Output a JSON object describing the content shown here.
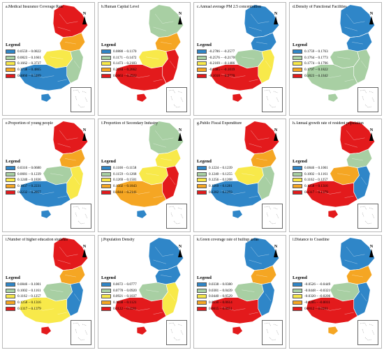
{
  "figure": {
    "legend_title": "Legend",
    "north_label": "N",
    "panels": [
      {
        "title": "a.Medical Insurance Coverage Rate",
        "colors": {
          "north": "#e31a1c",
          "northeast": "#f5a623",
          "central": "#f8e94a",
          "east": "#a8cfa3",
          "south": "#2f86c8",
          "island": "#2f86c8"
        },
        "legend": [
          {
            "color": "#2f86c8",
            "label": "0.0559 – 0.0822"
          },
          {
            "color": "#a8cfa3",
            "label": "0.0823 – 0.1661"
          },
          {
            "color": "#f8e94a",
            "label": "0.1662 – 0.3737"
          },
          {
            "color": "#f5a623",
            "label": "0.3738 – 0.4865"
          },
          {
            "color": "#e31a1c",
            "label": "0.4866 – 0.5469"
          }
        ]
      },
      {
        "title": "b.Human Capital Level",
        "colors": {
          "north": "#a8cfa3",
          "northeast": "#f5a623",
          "central": "#f8e94a",
          "east": "#e31a1c",
          "south": "#e31a1c",
          "island": "#e31a1c"
        },
        "legend": [
          {
            "color": "#2f86c8",
            "label": "0.0880 – 0.1170"
          },
          {
            "color": "#a8cfa3",
            "label": "0.1171 – 0.1472"
          },
          {
            "color": "#f8e94a",
            "label": "0.1473 – 0.2183"
          },
          {
            "color": "#f5a623",
            "label": "0.2184 – 0.2662"
          },
          {
            "color": "#e31a1c",
            "label": "0.2663 – 0.2922"
          }
        ]
      },
      {
        "title": "c.Annual average PM 2.5 concentration",
        "colors": {
          "north": "#2f86c8",
          "northeast": "#2f86c8",
          "central": "#a8cfa3",
          "east": "#f8e94a",
          "south": "#e31a1c",
          "island": "#e31a1c"
        },
        "legend": [
          {
            "color": "#2f86c8",
            "label": "-0.2786 – -0.2577"
          },
          {
            "color": "#a8cfa3",
            "label": "-0.2576 – -0.2170"
          },
          {
            "color": "#f8e94a",
            "label": "-0.2169 – -0.1486"
          },
          {
            "color": "#f5a623",
            "label": "-0.1485 – -0.1019"
          },
          {
            "color": "#e31a1c",
            "label": "-0.1018 – -0.0770"
          }
        ]
      },
      {
        "title": "d.Density of Functional Facilities",
        "colors": {
          "north": "#2f86c8",
          "northeast": "#2f86c8",
          "central": "#a8cfa3",
          "east": "#a8cfa3",
          "south": "#a8cfa3",
          "island": "#a8cfa3"
        },
        "legend": [
          {
            "color": "#2f86c8",
            "label": "0.1759 – 0.1763"
          },
          {
            "color": "#a8cfa3",
            "label": "0.1764 – 0.1773"
          },
          {
            "color": "#f8e94a",
            "label": "0.1774 – 0.1796"
          },
          {
            "color": "#f5a623",
            "label": "0.1797 – 0.1822"
          },
          {
            "color": "#e31a1c",
            "label": "0.1823 – 0.1842"
          }
        ]
      },
      {
        "title": "e.Proportion of young people",
        "colors": {
          "north": "#e31a1c",
          "northeast": "#f5a623",
          "central": "#a8cfa3",
          "east": "#f8e94a",
          "south": "#2f86c8",
          "island": "#2f86c8"
        },
        "legend": [
          {
            "color": "#2f86c8",
            "label": "0.0316 – 0.0680"
          },
          {
            "color": "#a8cfa3",
            "label": "0.0681 – 0.1239"
          },
          {
            "color": "#f8e94a",
            "label": "0.1240 – 0.1836"
          },
          {
            "color": "#f5a623",
            "label": "0.1837 – 0.2231"
          },
          {
            "color": "#e31a1c",
            "label": "0.2232 – 0.2857"
          }
        ]
      },
      {
        "title": "f.Proportion of Secondary Industry",
        "colors": {
          "north": "#a8cfa3",
          "northeast": "#f8e94a",
          "central": "#f8e94a",
          "east": "#e31a1c",
          "south": "#f5a623",
          "island": "#2f86c8"
        },
        "legend": [
          {
            "color": "#2f86c8",
            "label": "0.1100 – 0.1158"
          },
          {
            "color": "#a8cfa3",
            "label": "0.1159 – 0.1268"
          },
          {
            "color": "#f8e94a",
            "label": "0.1269 – 0.1501"
          },
          {
            "color": "#f5a623",
            "label": "0.1502 – 0.1843"
          },
          {
            "color": "#e31a1c",
            "label": "0.1844 – 0.2141"
          }
        ]
      },
      {
        "title": "g.Public Fiscal Expenditure",
        "colors": {
          "north": "#e31a1c",
          "northeast": "#f5a623",
          "central": "#f8e94a",
          "east": "#a8cfa3",
          "south": "#2f86c8",
          "island": "#2f86c8"
        },
        "legend": [
          {
            "color": "#2f86c8",
            "label": "0.1224 – 0.1239"
          },
          {
            "color": "#a8cfa3",
            "label": "0.1240 – 0.1255"
          },
          {
            "color": "#f8e94a",
            "label": "0.1256 – 0.1268"
          },
          {
            "color": "#f5a623",
            "label": "0.1269 – 0.1281"
          },
          {
            "color": "#e31a1c",
            "label": "0.1282 – 0.1293"
          }
        ]
      },
      {
        "title": "h.Annual growth rate of resident population",
        "colors": {
          "north": "#e31a1c",
          "northeast": "#a8cfa3",
          "central": "#f5a623",
          "east": "#2f86c8",
          "south": "#e31a1c",
          "island": "#e31a1c"
        },
        "legend": [
          {
            "color": "#2f86c8",
            "label": "0.0846 – 0.1001"
          },
          {
            "color": "#a8cfa3",
            "label": "0.1002 – 0.1161"
          },
          {
            "color": "#f8e94a",
            "label": "0.1162 – 0.1257"
          },
          {
            "color": "#f5a623",
            "label": "0.1258 – 0.1316"
          },
          {
            "color": "#e31a1c",
            "label": "0.1317 – 0.1379"
          }
        ]
      },
      {
        "title": "i.Number of higher education students",
        "colors": {
          "north": "#e31a1c",
          "northeast": "#f5a623",
          "central": "#a8cfa3",
          "east": "#2f86c8",
          "south": "#f8e94a",
          "island": "#e31a1c"
        },
        "legend": [
          {
            "color": "#2f86c8",
            "label": "0.0846 – 0.1001"
          },
          {
            "color": "#a8cfa3",
            "label": "0.1002 – 0.1161"
          },
          {
            "color": "#f8e94a",
            "label": "0.1162 – 0.1257"
          },
          {
            "color": "#f5a623",
            "label": "0.1258 – 0.1316"
          },
          {
            "color": "#e31a1c",
            "label": "0.1317 – 0.1379"
          }
        ]
      },
      {
        "title": "j.Population Density",
        "colors": {
          "north": "#2f86c8",
          "northeast": "#2f86c8",
          "central": "#a8cfa3",
          "east": "#f8e94a",
          "south": "#e31a1c",
          "island": "#e31a1c"
        },
        "legend": [
          {
            "color": "#2f86c8",
            "label": "0.0672 – 0.0777"
          },
          {
            "color": "#a8cfa3",
            "label": "0.0778 – 0.0920"
          },
          {
            "color": "#f8e94a",
            "label": "0.0921 – 0.1037"
          },
          {
            "color": "#f5a623",
            "label": "0.1038 – 0.1121"
          },
          {
            "color": "#e31a1c",
            "label": "0.1122 – 0.1181"
          }
        ]
      },
      {
        "title": "k.Green coverage rate of builtup areas",
        "colors": {
          "north": "#2f86c8",
          "northeast": "#f5a623",
          "central": "#a8cfa3",
          "east": "#2f86c8",
          "south": "#e31a1c",
          "island": "#e31a1c"
        },
        "legend": [
          {
            "color": "#2f86c8",
            "label": "0.0338 – 0.0380"
          },
          {
            "color": "#a8cfa3",
            "label": "0.0381 – 0.0439"
          },
          {
            "color": "#f8e94a",
            "label": "0.0440 – 0.0529"
          },
          {
            "color": "#f5a623",
            "label": "0.0530 – 0.0614"
          },
          {
            "color": "#e31a1c",
            "label": "0.0615 – 0.0651"
          }
        ]
      },
      {
        "title": "l.Distance to  Coastline",
        "colors": {
          "north": "#2f86c8",
          "northeast": "#f5a623",
          "central": "#a8cfa3",
          "east": "#2f86c8",
          "south": "#e31a1c",
          "island": "#f5a623"
        },
        "legend": [
          {
            "color": "#2f86c8",
            "label": "-0.0526 – -0.0449"
          },
          {
            "color": "#a8cfa3",
            "label": "-0.0448 – -0.0321"
          },
          {
            "color": "#f8e94a",
            "label": "-0.0320 – -0.0206"
          },
          {
            "color": "#f5a623",
            "label": "-0.0205 – -0.0011"
          },
          {
            "color": "#e31a1c",
            "label": "0.0012 – 0.0161"
          }
        ]
      }
    ]
  }
}
